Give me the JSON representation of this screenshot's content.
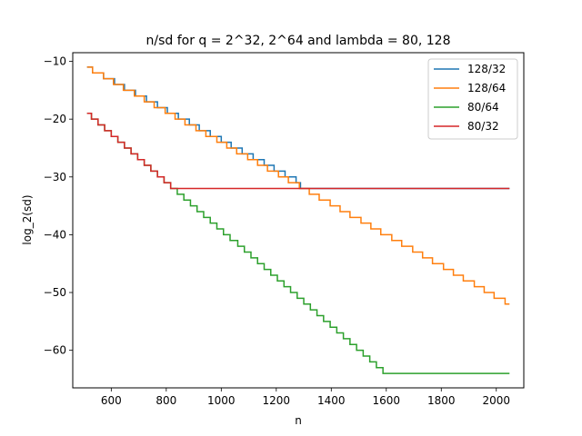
{
  "chart_data": {
    "type": "line",
    "title": "n/sd for q = 2^32, 2^64 and lambda = 80, 128",
    "xlabel": "n",
    "ylabel": "log_2(sd)",
    "xlim": [
      460,
      2100
    ],
    "ylim": [
      -66.5,
      -8.5
    ],
    "xticks": [
      600,
      800,
      1000,
      1200,
      1400,
      1600,
      1800,
      2000
    ],
    "yticks": [
      -10,
      -20,
      -30,
      -40,
      -50,
      -60
    ],
    "grid": false,
    "legend_position": "top-right",
    "series": [
      {
        "name": "128/32",
        "color": "#1f77b4",
        "x": [
          512,
          1280,
          1290,
          2048
        ],
        "y": [
          -11,
          -30.8,
          -32,
          -32
        ]
      },
      {
        "name": "128/64",
        "color": "#ff7f0e",
        "x": [
          512,
          2048
        ],
        "y": [
          -11,
          -52
        ]
      },
      {
        "name": "80/64",
        "color": "#2ca02c",
        "x": [
          512,
          1600,
          2048
        ],
        "y": [
          -19,
          -64,
          -64
        ]
      },
      {
        "name": "80/32",
        "color": "#d62728",
        "x": [
          512,
          810,
          820,
          2048
        ],
        "y": [
          -19,
          -31.3,
          -32,
          -32
        ]
      }
    ]
  }
}
